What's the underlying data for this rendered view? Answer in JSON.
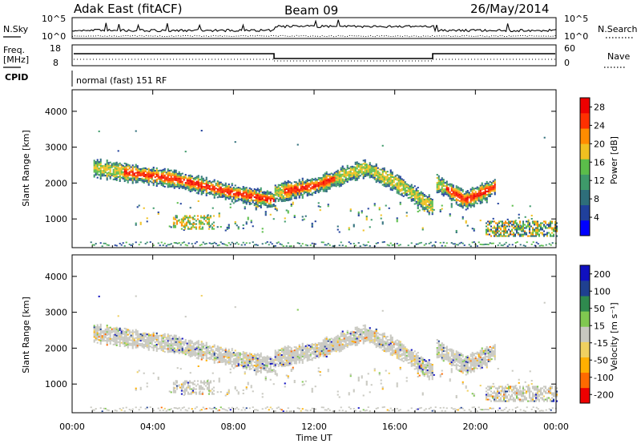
{
  "header": {
    "title": "Adak East (fitACF)",
    "beam": "Beam 09",
    "date": "26/May/2014"
  },
  "panels": {
    "nsky": {
      "label": "N.Sky",
      "right_label": "N.Search",
      "ticks": [
        "10^5",
        "10^0"
      ],
      "right_ticks": [
        "10^5",
        "10^0"
      ]
    },
    "freq": {
      "label": "Freq.",
      "unit": "[MHz]",
      "right_label": "Nave",
      "ticks": [
        "18",
        "8"
      ],
      "right_ticks": [
        "60",
        "0"
      ]
    },
    "cpid": {
      "label": "CPID",
      "text": "normal (fast) 151 RF"
    }
  },
  "colors": {
    "power": [
      "#0000ff",
      "#20409c",
      "#2e6e7a",
      "#3e9a6a",
      "#5bbd4a",
      "#f0c020",
      "#ff8c00",
      "#ff3000",
      "#ee0000"
    ],
    "velocity": [
      "#ee0000",
      "#ff6a00",
      "#ffb000",
      "#f0d060",
      "#c8c8c0",
      "#80c850",
      "#2f8a4e",
      "#1f4090",
      "#1010c0"
    ]
  },
  "chart_data": [
    {
      "type": "heatmap",
      "title": "",
      "xlabel": "",
      "ylabel": "Slant Range [km]",
      "x_ticks": [
        "00:00",
        "04:00",
        "08:00",
        "12:00",
        "16:00",
        "20:00",
        "00:00"
      ],
      "y_ticks": [
        "1000",
        "2000",
        "3000",
        "4000"
      ],
      "ylim": [
        200,
        4600
      ],
      "colorbar": {
        "label": "Power [dB]",
        "ticks": [
          "4",
          "8",
          "12",
          "16",
          "20",
          "24",
          "28"
        ],
        "range": [
          0,
          30
        ]
      },
      "bands": [
        {
          "x": [
            1.0,
            5.0,
            8.0,
            10.0
          ],
          "y": [
            2400,
            2100,
            1700,
            1500
          ]
        },
        {
          "x": [
            10.0,
            12.0,
            14.5
          ],
          "y": [
            1700,
            1900,
            2400
          ]
        },
        {
          "x": [
            14.5,
            16.0,
            17.9
          ],
          "y": [
            2400,
            2000,
            1300
          ]
        },
        {
          "x": [
            18.0,
            19.5,
            21.0
          ],
          "y": [
            2000,
            1500,
            1900
          ]
        }
      ]
    },
    {
      "type": "heatmap",
      "title": "",
      "xlabel": "Time UT",
      "ylabel": "Slant Range [km]",
      "x_ticks": [
        "00:00",
        "04:00",
        "08:00",
        "12:00",
        "16:00",
        "20:00",
        "00:00"
      ],
      "y_ticks": [
        "1000",
        "2000",
        "3000",
        "4000"
      ],
      "ylim": [
        200,
        4600
      ],
      "colorbar": {
        "label": "Velocity [m s⁻¹]",
        "ticks": [
          "-200",
          "-100",
          "-50",
          "-15",
          "15",
          "50",
          "100",
          "200"
        ],
        "range": [
          -250,
          250
        ]
      }
    }
  ]
}
